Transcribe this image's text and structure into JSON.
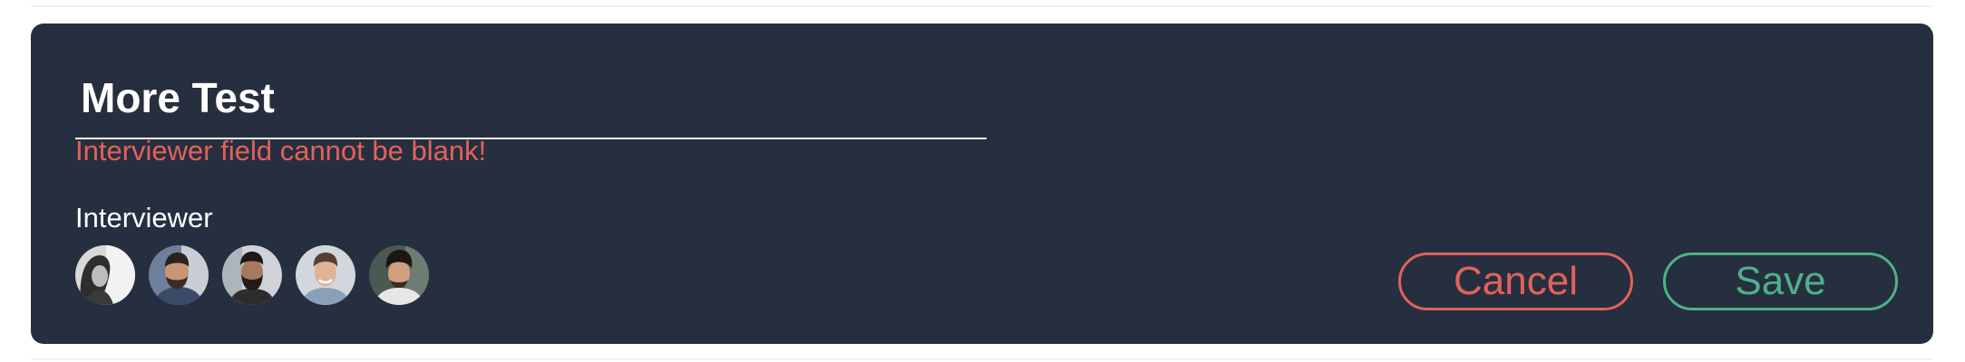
{
  "form": {
    "title_value": "More Test",
    "error_message": "Interviewer field cannot be blank!",
    "interviewer_label": "Interviewer"
  },
  "interviewers": [
    {
      "avatar": "avatar-woman"
    },
    {
      "avatar": "avatar-man-beard"
    },
    {
      "avatar": "avatar-man-dark-beard"
    },
    {
      "avatar": "avatar-man-smiling"
    },
    {
      "avatar": "avatar-man-dark-hair"
    }
  ],
  "actions": {
    "cancel_label": "Cancel",
    "save_label": "Save"
  },
  "colors": {
    "card_background": "#262f3f",
    "error": "#e2625b",
    "cancel": "#e2625b",
    "save": "#4fb08a",
    "text": "#ffffff"
  }
}
